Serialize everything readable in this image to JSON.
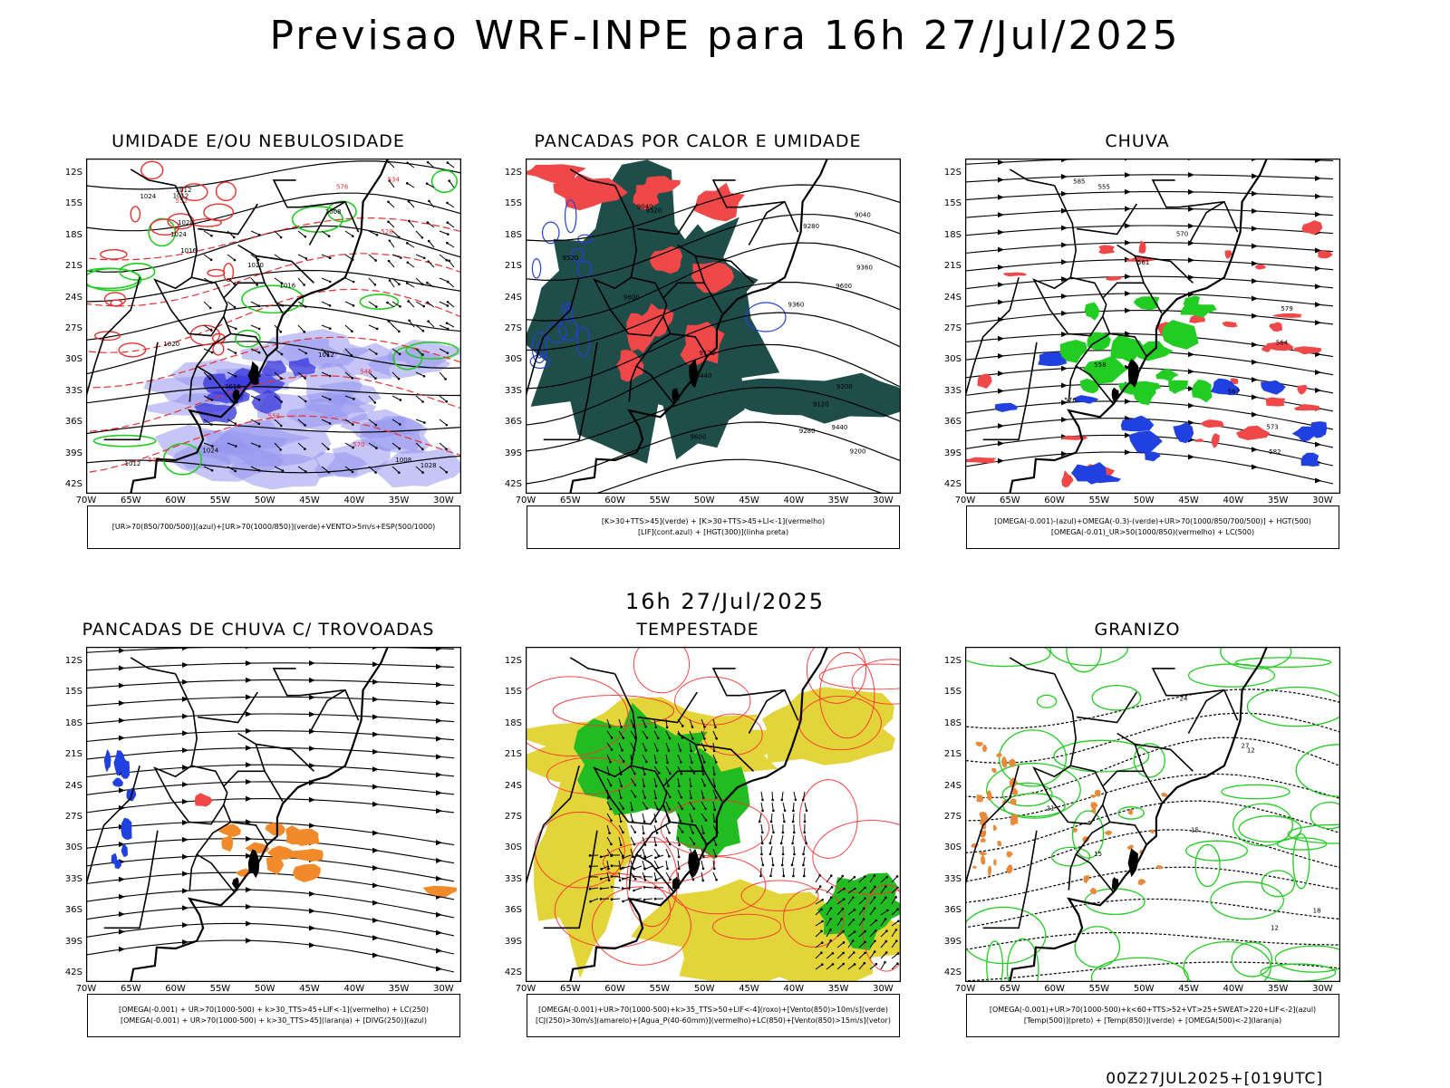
{
  "header": {
    "title": "Previsao WRF-INPE  para 16h 27/Jul/2025",
    "mid_time": "16h 27/Jul/2025",
    "footer_run": "00Z27JUL2025+[019UTC]"
  },
  "axes": {
    "lat_labels": [
      "12S",
      "15S",
      "18S",
      "21S",
      "24S",
      "27S",
      "30S",
      "33S",
      "36S",
      "39S",
      "42S"
    ],
    "lon_labels": [
      "70W",
      "65W",
      "60W",
      "55W",
      "50W",
      "45W",
      "40W",
      "35W",
      "30W"
    ]
  },
  "panels": [
    {
      "title": "UMIDADE E/OU NEBULOSIDADE",
      "legend": [
        "[UR>70(850/700/500)](azul)+[UR>70(1000/850)](verde)+VENTO>5m/s+ESP(500/1000)"
      ],
      "labels": [
        "1012",
        "1012",
        "1016",
        "1016",
        "1020",
        "1012",
        "1008",
        "1016",
        "1024",
        "1008",
        "1020",
        "1012",
        "1020",
        "1024",
        "1024",
        "1028",
        "570",
        "576",
        "558",
        "552",
        "546",
        "540",
        "534",
        "528"
      ]
    },
    {
      "title": "PANCADAS POR CALOR E UMIDADE",
      "legend": [
        "[K>30+TTS>45](verde) + [K>30+TTS>45+LI<-1](vermelho)",
        "[LIF](cont.azul) + [HGT(300)](linha preta)"
      ],
      "labels": [
        "9600",
        "9600",
        "9520",
        "9440",
        "9360",
        "9280",
        "9200",
        "9120",
        "9040",
        "9440",
        "9520",
        "9600",
        "9360",
        "9280",
        "9200",
        "9120",
        "9040"
      ]
    },
    {
      "title": "CHUVA",
      "legend": [
        "[OMEGA(-0.001)-(azul)+OMEGA(-0.3)-(verde)+UR>70(1000/850/700/500)] + HGT(500)",
        "[OMEGA(-0.01)_UR>50(1000/850)(vermelho) + LC(500)"
      ],
      "labels": [
        "585",
        "582",
        "576",
        "570",
        "564",
        "558",
        "555",
        "561",
        "567",
        "573",
        "579"
      ]
    },
    {
      "title": "PANCADAS DE CHUVA C/ TROVOADAS",
      "legend": [
        "[OMEGA(-0.001) + UR>70(1000-500) + k>30_TTS>45+LIF<-1](vermelho) + LC(250)",
        "[OMEGA(-0.001) + UR>70(1000-500) + k>30_TTS>45](laranja) + [DIVG(250)](azul)"
      ],
      "labels": []
    },
    {
      "title": "TEMPESTADE",
      "legend": [
        "[OMEGA(-0.001)+UR>70(1000-500)+k>35_TTS>50+LIF<-4](roxo)+[Vento(850)>10m/s](verde)",
        "[CJ(250)>30m/s](amarelo)+[Agua_P(40-60mm)](vermelho)+LC(850)+[Vento(850)>15m/s](vetor)"
      ],
      "labels": []
    },
    {
      "title": "GRANIZO",
      "legend": [
        "[OMEGA(-0.001)+UR>70(1000-500)+k<60+TTS>52+VT>25+SWEAT>220+LIF<-2](azul)",
        "[Temp(500)](preto) + [Temp(850)](verde) + [OMEGA(500)<-2](laranja)"
      ],
      "labels": [
        "12",
        "15",
        "18",
        "21",
        "24",
        "27",
        "12",
        "15"
      ]
    }
  ]
}
